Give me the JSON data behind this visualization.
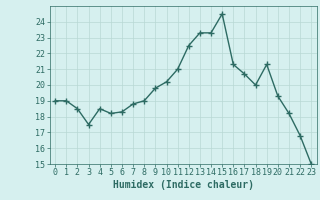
{
  "x": [
    0,
    1,
    2,
    3,
    4,
    5,
    6,
    7,
    8,
    9,
    10,
    11,
    12,
    13,
    14,
    15,
    16,
    17,
    18,
    19,
    20,
    21,
    22,
    23
  ],
  "y": [
    19.0,
    19.0,
    18.5,
    17.5,
    18.5,
    18.2,
    18.3,
    18.8,
    19.0,
    19.8,
    20.2,
    21.0,
    22.5,
    23.3,
    23.3,
    24.5,
    21.3,
    20.7,
    20.0,
    21.3,
    19.3,
    18.2,
    16.8,
    15.0
  ],
  "line_color": "#2d6b63",
  "marker": "+",
  "markersize": 4,
  "linewidth": 1.0,
  "xlabel": "Humidex (Indice chaleur)",
  "xlim": [
    -0.5,
    23.5
  ],
  "ylim": [
    15,
    25
  ],
  "yticks": [
    15,
    16,
    17,
    18,
    19,
    20,
    21,
    22,
    23,
    24
  ],
  "xticks": [
    0,
    1,
    2,
    3,
    4,
    5,
    6,
    7,
    8,
    9,
    10,
    11,
    12,
    13,
    14,
    15,
    16,
    17,
    18,
    19,
    20,
    21,
    22,
    23
  ],
  "background_color": "#d6f0ef",
  "grid_color": "#b8d8d4",
  "grid_linewidth": 0.5,
  "xlabel_fontsize": 7,
  "tick_fontsize": 6,
  "line_color_hex": "#2d6b63"
}
